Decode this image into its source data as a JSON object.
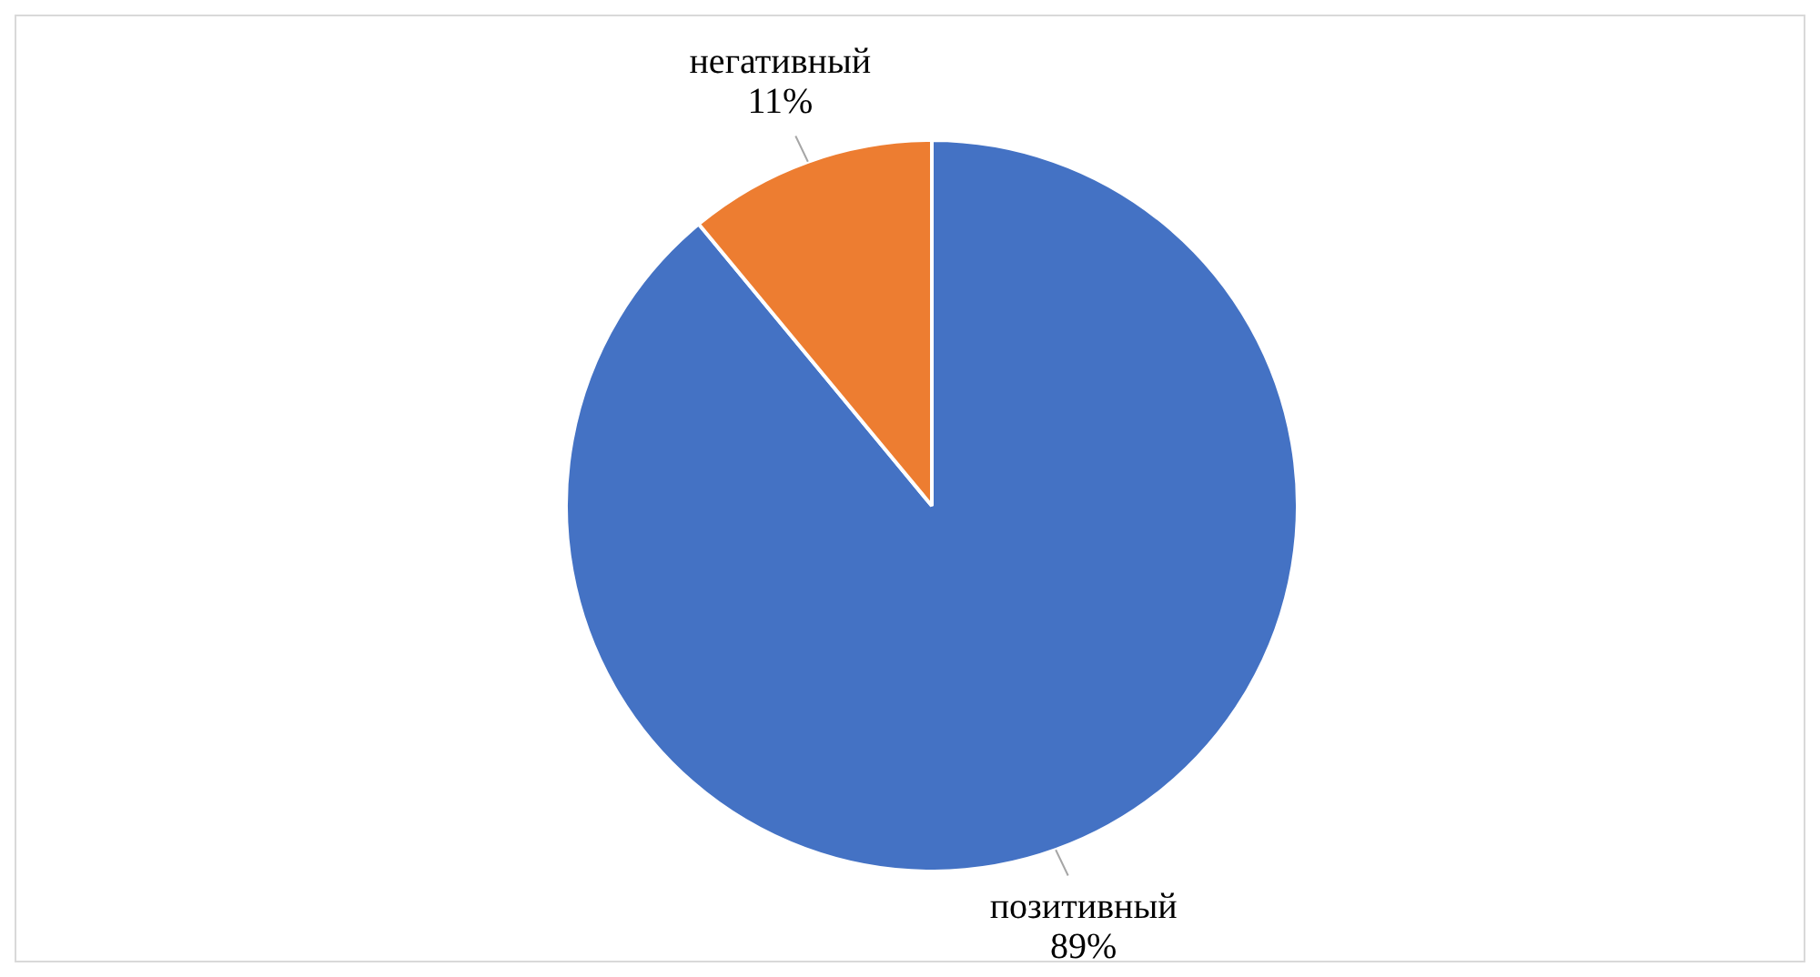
{
  "chart_data": {
    "type": "pie",
    "categories": [
      "позитивный",
      "негативный"
    ],
    "values": [
      89,
      11
    ],
    "colors": [
      "#4472c4",
      "#ed7d31"
    ],
    "value_labels": [
      "89%",
      "11%"
    ],
    "legend": false
  }
}
